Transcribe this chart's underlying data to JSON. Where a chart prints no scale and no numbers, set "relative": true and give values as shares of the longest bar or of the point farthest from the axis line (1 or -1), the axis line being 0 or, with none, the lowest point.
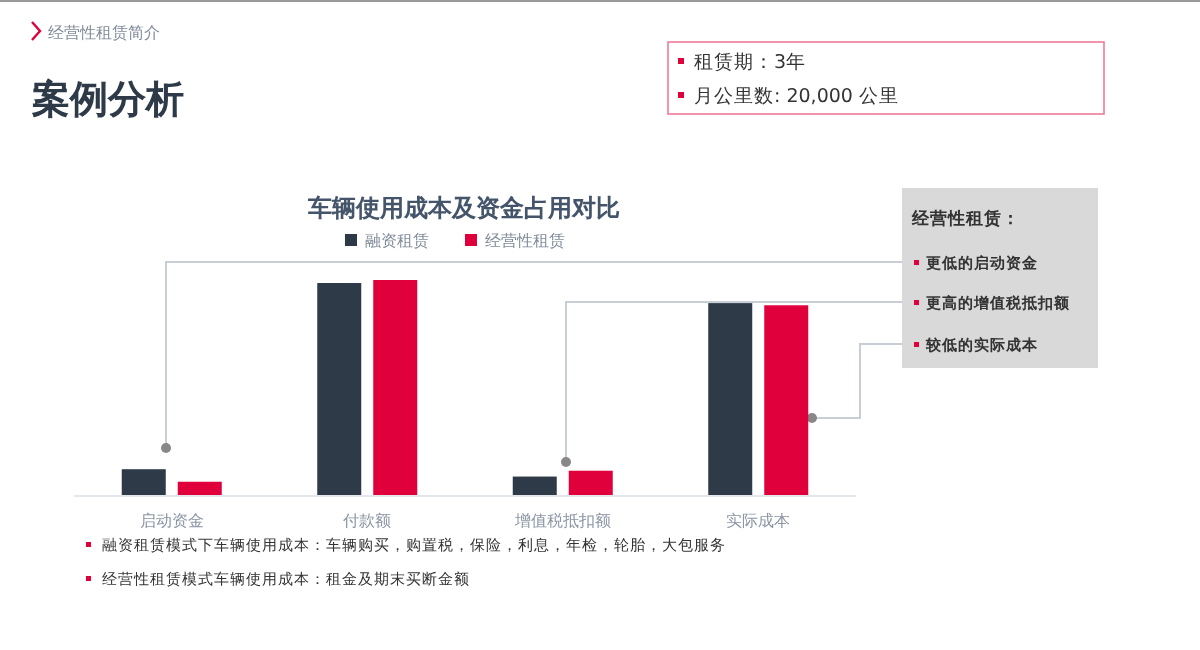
{
  "chart_data": {
    "type": "bar",
    "title": "车辆使用成本及资金占用对比",
    "relative": true,
    "legend": "top",
    "categories": [
      "启动资金",
      "付款额",
      "增值税抵扣额",
      "实际成本"
    ],
    "series": [
      {
        "name": "融资租赁",
        "color": "#2e3a48",
        "values": [
          0.124,
          0.986,
          0.09,
          0.893
        ]
      },
      {
        "name": "经营性租赁",
        "color": "#e0003c",
        "values": [
          0.066,
          1,
          0.117,
          0.883
        ]
      }
    ],
    "annotations": [
      "经营性租赁简介",
      "案例分析",
      "租赁期：3年",
      "月公里数: 20,000 公里",
      "经营性租赁：",
      "更低的启动资金",
      "更高的增值税抵扣额",
      "较低的实际成本",
      "融资租赁模式下车辆使用成本：车辆购买，购置税，保险，利息，年检，轮胎，大包服务",
      "经营性租赁模式车辆使用成本：租金及期末买断金额"
    ]
  }
}
